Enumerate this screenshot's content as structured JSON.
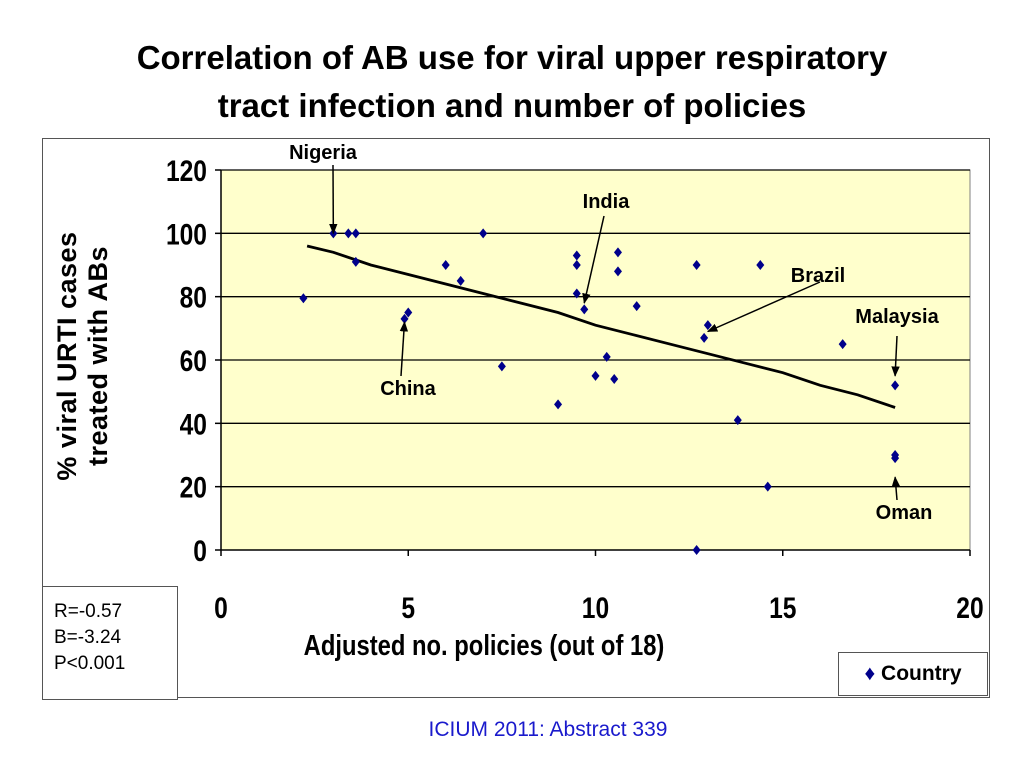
{
  "slide": {
    "title_line1": "Correlation of AB use for viral upper respiratory",
    "title_line2": "tract infection and number of policies",
    "footer": "ICIUM 2011: Abstract 339"
  },
  "stats": {
    "r": "R=-0.57",
    "b": "B=-3.24",
    "p": "P<0.001"
  },
  "legend": {
    "marker": "♦",
    "label": "Country"
  },
  "chart_data": {
    "type": "scatter",
    "title": "",
    "xlabel": "Adjusted no. policies (out of 18)",
    "ylabel_line1": "% viral URTI cases",
    "ylabel_line2": "treated with ABs",
    "xlim": [
      0,
      20
    ],
    "ylim": [
      0,
      120
    ],
    "x_ticks": [
      0,
      5,
      10,
      15,
      20
    ],
    "y_ticks": [
      0,
      20,
      40,
      60,
      80,
      100,
      120
    ],
    "grid": "horizontal",
    "plot_background": "#ffffcc",
    "marker_color": "#00008b",
    "series": [
      {
        "name": "Country",
        "points": [
          {
            "x": 2.2,
            "y": 79.5
          },
          {
            "x": 3.0,
            "y": 100
          },
          {
            "x": 3.4,
            "y": 100
          },
          {
            "x": 3.6,
            "y": 100
          },
          {
            "x": 3.6,
            "y": 91
          },
          {
            "x": 4.9,
            "y": 73
          },
          {
            "x": 5.0,
            "y": 75
          },
          {
            "x": 6.0,
            "y": 90
          },
          {
            "x": 6.4,
            "y": 85
          },
          {
            "x": 7.0,
            "y": 100
          },
          {
            "x": 7.5,
            "y": 58
          },
          {
            "x": 9.0,
            "y": 46
          },
          {
            "x": 9.5,
            "y": 93
          },
          {
            "x": 9.5,
            "y": 90
          },
          {
            "x": 9.5,
            "y": 81
          },
          {
            "x": 9.7,
            "y": 76
          },
          {
            "x": 10.0,
            "y": 55
          },
          {
            "x": 10.3,
            "y": 61
          },
          {
            "x": 10.5,
            "y": 54
          },
          {
            "x": 10.6,
            "y": 94
          },
          {
            "x": 10.6,
            "y": 88
          },
          {
            "x": 11.1,
            "y": 77
          },
          {
            "x": 12.7,
            "y": 90
          },
          {
            "x": 12.7,
            "y": 0
          },
          {
            "x": 12.9,
            "y": 67
          },
          {
            "x": 13.0,
            "y": 71
          },
          {
            "x": 13.8,
            "y": 41
          },
          {
            "x": 14.4,
            "y": 90
          },
          {
            "x": 14.6,
            "y": 20
          },
          {
            "x": 16.6,
            "y": 65
          },
          {
            "x": 18.0,
            "y": 52
          },
          {
            "x": 18.0,
            "y": 30
          },
          {
            "x": 18.0,
            "y": 29
          }
        ]
      }
    ],
    "trendline": [
      {
        "x": 2.3,
        "y": 96
      },
      {
        "x": 3.0,
        "y": 94
      },
      {
        "x": 4.0,
        "y": 90
      },
      {
        "x": 5.0,
        "y": 87
      },
      {
        "x": 6.0,
        "y": 84
      },
      {
        "x": 7.0,
        "y": 81
      },
      {
        "x": 8.0,
        "y": 78
      },
      {
        "x": 9.0,
        "y": 75
      },
      {
        "x": 10.0,
        "y": 71
      },
      {
        "x": 11.0,
        "y": 68
      },
      {
        "x": 12.0,
        "y": 65
      },
      {
        "x": 13.0,
        "y": 62
      },
      {
        "x": 14.0,
        "y": 59
      },
      {
        "x": 15.0,
        "y": 56
      },
      {
        "x": 16.0,
        "y": 52
      },
      {
        "x": 17.0,
        "y": 49
      },
      {
        "x": 18.0,
        "y": 45
      }
    ],
    "annotations": [
      {
        "label": "Nigeria",
        "point": {
          "x": 3.0,
          "y": 100
        }
      },
      {
        "label": "India",
        "point": {
          "x": 9.7,
          "y": 78
        }
      },
      {
        "label": "Brazil",
        "point": {
          "x": 13.0,
          "y": 69
        }
      },
      {
        "label": "Malaysia",
        "point": {
          "x": 18.0,
          "y": 55
        }
      },
      {
        "label": "China",
        "point": {
          "x": 4.9,
          "y": 72
        }
      },
      {
        "label": "Oman",
        "point": {
          "x": 18.0,
          "y": 23
        }
      }
    ]
  }
}
